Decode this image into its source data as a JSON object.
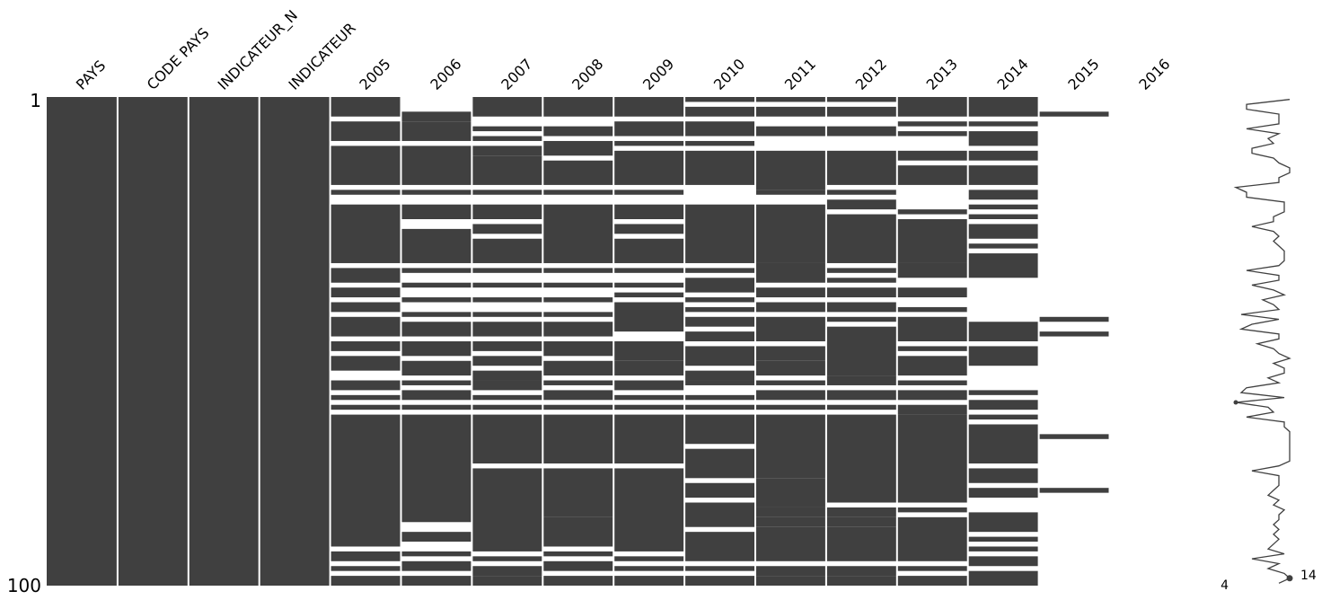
{
  "chart_data": {
    "type": "missing-value matrix",
    "n_rows": 100,
    "y_tick_labels": [
      "1",
      "100"
    ],
    "columns": [
      {
        "name": "PAYS",
        "present_ranges": [
          [
            1,
            100
          ]
        ]
      },
      {
        "name": "CODE PAYS",
        "present_ranges": [
          [
            1,
            100
          ]
        ]
      },
      {
        "name": "INDICATEUR_N",
        "present_ranges": [
          [
            1,
            100
          ]
        ]
      },
      {
        "name": "INDICATEUR",
        "present_ranges": [
          [
            1,
            100
          ]
        ]
      },
      {
        "name": "2005",
        "present_ranges": [
          [
            1,
            4
          ],
          [
            6,
            9
          ],
          [
            11,
            18
          ],
          [
            20,
            20
          ],
          [
            23,
            34
          ],
          [
            36,
            38
          ],
          [
            40,
            41
          ],
          [
            43,
            44
          ],
          [
            46,
            49
          ],
          [
            51,
            52
          ],
          [
            54,
            56
          ],
          [
            59,
            60
          ],
          [
            62,
            62
          ],
          [
            64,
            64
          ],
          [
            66,
            92
          ],
          [
            94,
            95
          ],
          [
            97,
            97
          ],
          [
            99,
            100
          ]
        ]
      },
      {
        "name": "2006",
        "present_ranges": [
          [
            4,
            5
          ],
          [
            6,
            9
          ],
          [
            11,
            18
          ],
          [
            20,
            20
          ],
          [
            23,
            25
          ],
          [
            28,
            34
          ],
          [
            36,
            36
          ],
          [
            39,
            39
          ],
          [
            42,
            42
          ],
          [
            45,
            45
          ],
          [
            47,
            49
          ],
          [
            51,
            53
          ],
          [
            55,
            57
          ],
          [
            59,
            59
          ],
          [
            61,
            62
          ],
          [
            64,
            64
          ],
          [
            66,
            87
          ],
          [
            90,
            91
          ],
          [
            94,
            94
          ],
          [
            96,
            97
          ],
          [
            99,
            100
          ]
        ]
      },
      {
        "name": "2007",
        "present_ranges": [
          [
            1,
            4
          ],
          [
            7,
            7
          ],
          [
            9,
            9
          ],
          [
            11,
            12
          ],
          [
            13,
            18
          ],
          [
            20,
            20
          ],
          [
            23,
            25
          ],
          [
            27,
            28
          ],
          [
            30,
            34
          ],
          [
            36,
            36
          ],
          [
            39,
            39
          ],
          [
            42,
            42
          ],
          [
            45,
            45
          ],
          [
            47,
            49
          ],
          [
            51,
            52
          ],
          [
            54,
            55
          ],
          [
            57,
            58
          ],
          [
            59,
            60
          ],
          [
            62,
            62
          ],
          [
            64,
            64
          ],
          [
            66,
            75
          ],
          [
            77,
            93
          ],
          [
            95,
            95
          ],
          [
            97,
            98
          ],
          [
            99,
            100
          ]
        ]
      },
      {
        "name": "2008",
        "present_ranges": [
          [
            1,
            4
          ],
          [
            7,
            8
          ],
          [
            10,
            12
          ],
          [
            14,
            18
          ],
          [
            20,
            20
          ],
          [
            23,
            34
          ],
          [
            36,
            36
          ],
          [
            39,
            39
          ],
          [
            42,
            42
          ],
          [
            45,
            45
          ],
          [
            47,
            49
          ],
          [
            51,
            53
          ],
          [
            55,
            57
          ],
          [
            59,
            59
          ],
          [
            61,
            62
          ],
          [
            64,
            64
          ],
          [
            66,
            75
          ],
          [
            77,
            86
          ],
          [
            87,
            92
          ],
          [
            94,
            94
          ],
          [
            96,
            97
          ],
          [
            99,
            100
          ]
        ]
      },
      {
        "name": "2009",
        "present_ranges": [
          [
            1,
            4
          ],
          [
            6,
            8
          ],
          [
            10,
            10
          ],
          [
            12,
            18
          ],
          [
            20,
            20
          ],
          [
            23,
            25
          ],
          [
            27,
            28
          ],
          [
            30,
            34
          ],
          [
            36,
            36
          ],
          [
            39,
            39
          ],
          [
            41,
            41
          ],
          [
            43,
            48
          ],
          [
            51,
            54
          ],
          [
            55,
            57
          ],
          [
            59,
            60
          ],
          [
            62,
            62
          ],
          [
            64,
            64
          ],
          [
            66,
            75
          ],
          [
            77,
            93
          ],
          [
            95,
            95
          ],
          [
            97,
            97
          ],
          [
            99,
            100
          ]
        ]
      },
      {
        "name": "2010",
        "present_ranges": [
          [
            1,
            1
          ],
          [
            3,
            4
          ],
          [
            6,
            8
          ],
          [
            10,
            10
          ],
          [
            12,
            18
          ],
          [
            23,
            34
          ],
          [
            36,
            36
          ],
          [
            38,
            40
          ],
          [
            42,
            42
          ],
          [
            44,
            44
          ],
          [
            46,
            47
          ],
          [
            49,
            50
          ],
          [
            52,
            55
          ],
          [
            57,
            58
          ],
          [
            59,
            59
          ],
          [
            62,
            62
          ],
          [
            64,
            64
          ],
          [
            66,
            71
          ],
          [
            73,
            78
          ],
          [
            80,
            82
          ],
          [
            84,
            88
          ],
          [
            90,
            95
          ],
          [
            97,
            97
          ],
          [
            99,
            100
          ]
        ]
      },
      {
        "name": "2011",
        "present_ranges": [
          [
            1,
            1
          ],
          [
            3,
            4
          ],
          [
            7,
            8
          ],
          [
            12,
            19
          ],
          [
            20,
            20
          ],
          [
            23,
            34
          ],
          [
            35,
            38
          ],
          [
            40,
            41
          ],
          [
            43,
            44
          ],
          [
            46,
            50
          ],
          [
            52,
            54
          ],
          [
            55,
            57
          ],
          [
            59,
            59
          ],
          [
            61,
            62
          ],
          [
            64,
            64
          ],
          [
            66,
            78
          ],
          [
            79,
            84
          ],
          [
            85,
            86
          ],
          [
            87,
            88
          ],
          [
            89,
            95
          ],
          [
            97,
            98
          ],
          [
            99,
            100
          ]
        ]
      },
      {
        "name": "2012",
        "present_ranges": [
          [
            1,
            1
          ],
          [
            3,
            4
          ],
          [
            7,
            8
          ],
          [
            12,
            18
          ],
          [
            20,
            20
          ],
          [
            22,
            23
          ],
          [
            25,
            34
          ],
          [
            36,
            36
          ],
          [
            38,
            38
          ],
          [
            40,
            41
          ],
          [
            43,
            44
          ],
          [
            46,
            46
          ],
          [
            48,
            57
          ],
          [
            58,
            59
          ],
          [
            61,
            62
          ],
          [
            64,
            64
          ],
          [
            66,
            83
          ],
          [
            85,
            86
          ],
          [
            87,
            88
          ],
          [
            89,
            95
          ],
          [
            97,
            98
          ],
          [
            99,
            100
          ]
        ]
      },
      {
        "name": "2013",
        "present_ranges": [
          [
            1,
            4
          ],
          [
            6,
            6
          ],
          [
            8,
            8
          ],
          [
            12,
            13
          ],
          [
            15,
            18
          ],
          [
            24,
            24
          ],
          [
            26,
            34
          ],
          [
            35,
            37
          ],
          [
            40,
            41
          ],
          [
            44,
            44
          ],
          [
            46,
            50
          ],
          [
            52,
            52
          ],
          [
            54,
            57
          ],
          [
            59,
            59
          ],
          [
            61,
            62
          ],
          [
            64,
            65
          ],
          [
            66,
            83
          ],
          [
            85,
            85
          ],
          [
            87,
            95
          ],
          [
            97,
            97
          ],
          [
            99,
            100
          ]
        ]
      },
      {
        "name": "2014",
        "present_ranges": [
          [
            1,
            4
          ],
          [
            6,
            6
          ],
          [
            8,
            10
          ],
          [
            12,
            13
          ],
          [
            15,
            18
          ],
          [
            20,
            21
          ],
          [
            23,
            23
          ],
          [
            25,
            25
          ],
          [
            27,
            29
          ],
          [
            31,
            31
          ],
          [
            33,
            37
          ],
          [
            47,
            50
          ],
          [
            52,
            55
          ],
          [
            61,
            61
          ],
          [
            63,
            64
          ],
          [
            66,
            66
          ],
          [
            68,
            75
          ],
          [
            77,
            79
          ],
          [
            81,
            82
          ],
          [
            86,
            89
          ],
          [
            91,
            91
          ],
          [
            93,
            93
          ],
          [
            95,
            96
          ],
          [
            98,
            100
          ]
        ]
      },
      {
        "name": "2015",
        "present_ranges": [
          [
            4,
            4
          ],
          [
            46,
            46
          ],
          [
            49,
            49
          ],
          [
            70,
            70
          ],
          [
            81,
            81
          ]
        ]
      },
      {
        "name": "2016",
        "present_ranges": []
      }
    ],
    "sparkline": {
      "min_label": "4",
      "max_label": "14",
      "row_completeness": [
        14,
        6,
        6,
        12,
        12,
        12,
        6,
        12,
        10,
        11,
        7,
        7,
        11,
        12,
        14,
        14,
        12,
        12,
        4,
        6,
        6,
        13,
        13,
        13,
        11,
        11,
        7,
        11,
        12,
        11,
        12,
        13,
        13,
        13,
        12,
        6,
        12,
        12,
        7,
        11,
        13,
        9,
        11,
        12,
        5,
        12,
        7,
        5,
        12,
        12,
        8,
        11,
        12,
        14,
        11,
        13,
        13,
        10,
        12,
        6,
        5,
        13,
        4,
        10,
        11,
        6,
        13,
        13,
        14,
        14,
        14,
        14,
        14,
        14,
        14,
        12,
        7,
        12,
        12,
        12,
        11,
        10,
        12,
        11,
        13,
        12,
        12,
        11,
        12,
        11,
        12,
        11,
        10,
        13,
        7,
        12,
        10,
        13,
        14,
        12
      ]
    }
  }
}
